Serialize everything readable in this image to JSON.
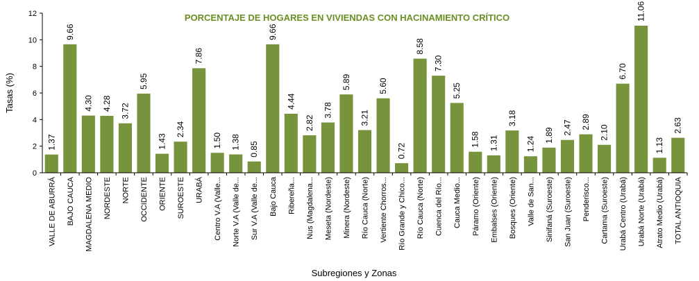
{
  "chart_data": {
    "type": "bar",
    "title": "PORCENTAJE DE HOGARES EN VIVIENDAS CON HACINAMIENTO CRÍTICO",
    "xlabel": "Subregiones y Zonas",
    "ylabel": "Tasas (%)",
    "ylim": [
      0,
      12
    ],
    "yticks": [
      "0",
      "2",
      "4",
      "6",
      "8",
      "10",
      "12"
    ],
    "grid": false,
    "legend": "none",
    "bar_color": "#77933c",
    "categories": [
      "VALLE DE ABURRÁ",
      "BAJO CAUCA",
      "MAGDALENA MEDIO",
      "NORDESTE",
      "NORTE",
      "OCCIDENTE",
      "ORIENTE",
      "SUROESTE",
      "URABÁ",
      "Centro V.A (Valle...",
      "Norte V.A (Valle de...",
      "Sur V.A (Valle de...",
      "Bajo Cauca",
      "Ribereña...",
      "Nus  (Magdalena...",
      "Meseta  (Nordeste)",
      "Minera  (Nordeste)",
      "Río Cauca  (Norte)",
      "Vertiente Chorros...",
      "Río Grande y Chico...",
      "Río Cauca (Norte)",
      "Cuenca del Río...",
      "Cauca Medio...",
      "Páramo  (Oriente)",
      "Embalses (Oriente)",
      "Bosques  (Oriente)",
      "Valle de San...",
      "Sinifaná  (Suroeste)",
      "San Juan  (Suroeste)",
      "Penderisco...",
      "Cartama  (Suroeste)",
      "Urabá Centro  (Urabá)",
      "Urabá Norte  (Urabá)",
      "Atrato Medio  (Urabá)",
      "TOTAL ANTIOQUIA"
    ],
    "values": [
      1.37,
      9.66,
      4.3,
      4.28,
      3.72,
      5.95,
      1.43,
      2.34,
      7.86,
      1.5,
      1.38,
      0.85,
      9.66,
      4.44,
      2.82,
      3.78,
      5.89,
      3.21,
      5.6,
      0.72,
      8.58,
      7.3,
      5.25,
      1.58,
      1.31,
      3.18,
      1.24,
      1.89,
      2.47,
      2.89,
      2.1,
      6.7,
      11.06,
      1.13,
      2.63
    ],
    "data_labels": [
      "1.37",
      "9.66",
      "4.30",
      "4.28",
      "3.72",
      "5.95",
      "1.43",
      "2.34",
      "7.86",
      "1.50",
      "1.38",
      "0.85",
      "9.66",
      "4.44",
      "2.82",
      "3.78",
      "5.89",
      "3.21",
      "5.60",
      "0.72",
      "8.58",
      "7.30",
      "5.25",
      "1.58",
      "1.31",
      "3.18",
      "1.24",
      "1.89",
      "2.47",
      "2.89",
      "2.10",
      "6.70",
      "11.06",
      "1.13",
      "2.63"
    ]
  }
}
